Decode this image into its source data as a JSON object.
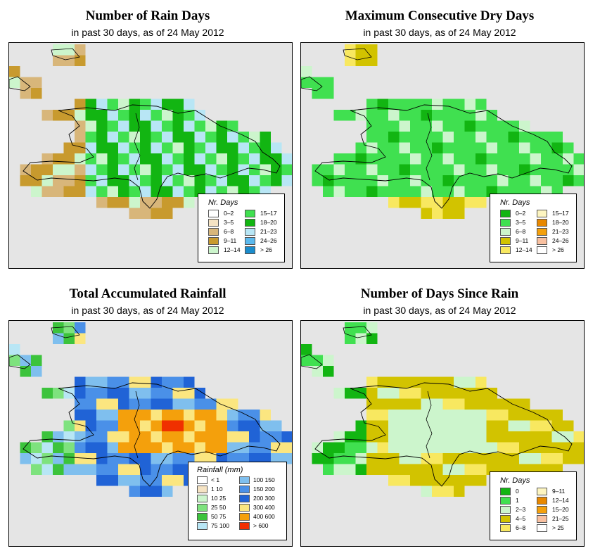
{
  "panels": [
    {
      "id": "rain-days",
      "title": "Number of Rain Days",
      "subtitle": "in past 30 days, as of  24 May 2012",
      "legend": {
        "title": "Nr. Days",
        "items": [
          {
            "label": "0–2",
            "color": "#ffffff"
          },
          {
            "label": "3–5",
            "color": "#f5e3c3"
          },
          {
            "label": "6–8",
            "color": "#d8b67a"
          },
          {
            "label": "9–11",
            "color": "#c89a2e"
          },
          {
            "label": "12–14",
            "color": "#ccf5cc"
          },
          {
            "label": "15–17",
            "color": "#40e050"
          },
          {
            "label": "18–20",
            "color": "#12b512"
          },
          {
            "label": "21–23",
            "color": "#b8e6f5"
          },
          {
            "label": "24–26",
            "color": "#5bb9ee"
          },
          {
            "label": "> 26",
            "color": "#1a8ccc"
          }
        ]
      }
    },
    {
      "id": "dry-days",
      "title": "Maximum Consecutive Dry Days",
      "subtitle": "in past 30 days, as of  24 May 2012",
      "legend": {
        "title": "Nr. Days",
        "items": [
          {
            "label": "0–2",
            "color": "#12b512"
          },
          {
            "label": "3–5",
            "color": "#40e050"
          },
          {
            "label": "6–8",
            "color": "#ccf5cc"
          },
          {
            "label": "9–11",
            "color": "#d2c300"
          },
          {
            "label": "12–14",
            "color": "#f8e860"
          },
          {
            "label": "15–17",
            "color": "#fdf5c0"
          },
          {
            "label": "18–20",
            "color": "#e88800"
          },
          {
            "label": "21–23",
            "color": "#f4a00c"
          },
          {
            "label": "24–26",
            "color": "#f8c0a0"
          },
          {
            "label": "> 26",
            "color": "#ffffff"
          }
        ]
      }
    },
    {
      "id": "rainfall",
      "title": "Total Accumulated Rainfall",
      "subtitle": "in past 30 days, as of  24 May 2012",
      "legend": {
        "title": "Rainfall (mm)",
        "items": [
          {
            "label": "< 1",
            "color": "#ffffff"
          },
          {
            "label": "1   10",
            "color": "#f5e3c3"
          },
          {
            "label": "10   25",
            "color": "#ccf5cc"
          },
          {
            "label": "25   50",
            "color": "#7ee27e"
          },
          {
            "label": "50   75",
            "color": "#3cc33c"
          },
          {
            "label": "75   100",
            "color": "#b8e6f5"
          },
          {
            "label": "100   150",
            "color": "#7fbfee"
          },
          {
            "label": "150   200",
            "color": "#4a90e8"
          },
          {
            "label": "200   300",
            "color": "#2063d6"
          },
          {
            "label": "300   400",
            "color": "#fbe680"
          },
          {
            "label": "400   600",
            "color": "#f4a00c"
          },
          {
            "label": "> 600",
            "color": "#f03000"
          }
        ]
      }
    },
    {
      "id": "days-since-rain",
      "title": "Number of Days Since Rain",
      "subtitle": "in past 30 days, as of  24 May 2012",
      "legend": {
        "title": "Nr. Days",
        "items": [
          {
            "label": "0",
            "color": "#12b512"
          },
          {
            "label": "1",
            "color": "#40e050"
          },
          {
            "label": "2–3",
            "color": "#ccf5cc"
          },
          {
            "label": "4–5",
            "color": "#d2c300"
          },
          {
            "label": "6–8",
            "color": "#f8e860"
          },
          {
            "label": "9–11",
            "color": "#fdf5c0"
          },
          {
            "label": "12–14",
            "color": "#e88800"
          },
          {
            "label": "15–20",
            "color": "#f4a00c"
          },
          {
            "label": "21–25",
            "color": "#f8c0a0"
          },
          {
            "label": "> 25",
            "color": "#ffffff"
          }
        ]
      }
    }
  ]
}
